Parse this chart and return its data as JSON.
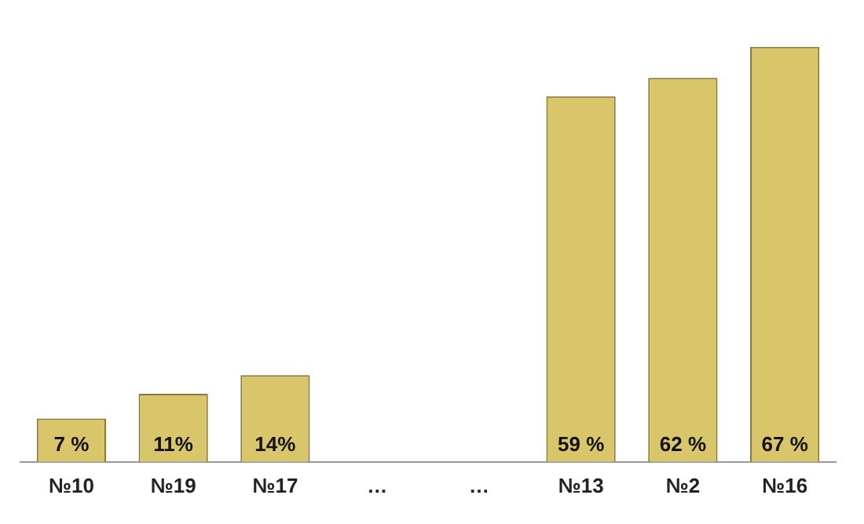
{
  "chart_data": {
    "type": "bar",
    "categories": [
      "№10",
      "№19",
      "№17",
      "…",
      "…",
      "№13",
      "№2",
      "№16"
    ],
    "values": [
      7,
      11,
      14,
      null,
      null,
      59,
      62,
      67
    ],
    "value_labels": [
      "7 %",
      "11%",
      "14%",
      null,
      null,
      "59 %",
      "62 %",
      "67 %"
    ],
    "color": "#d9c56a",
    "grid": false,
    "legend": false
  }
}
